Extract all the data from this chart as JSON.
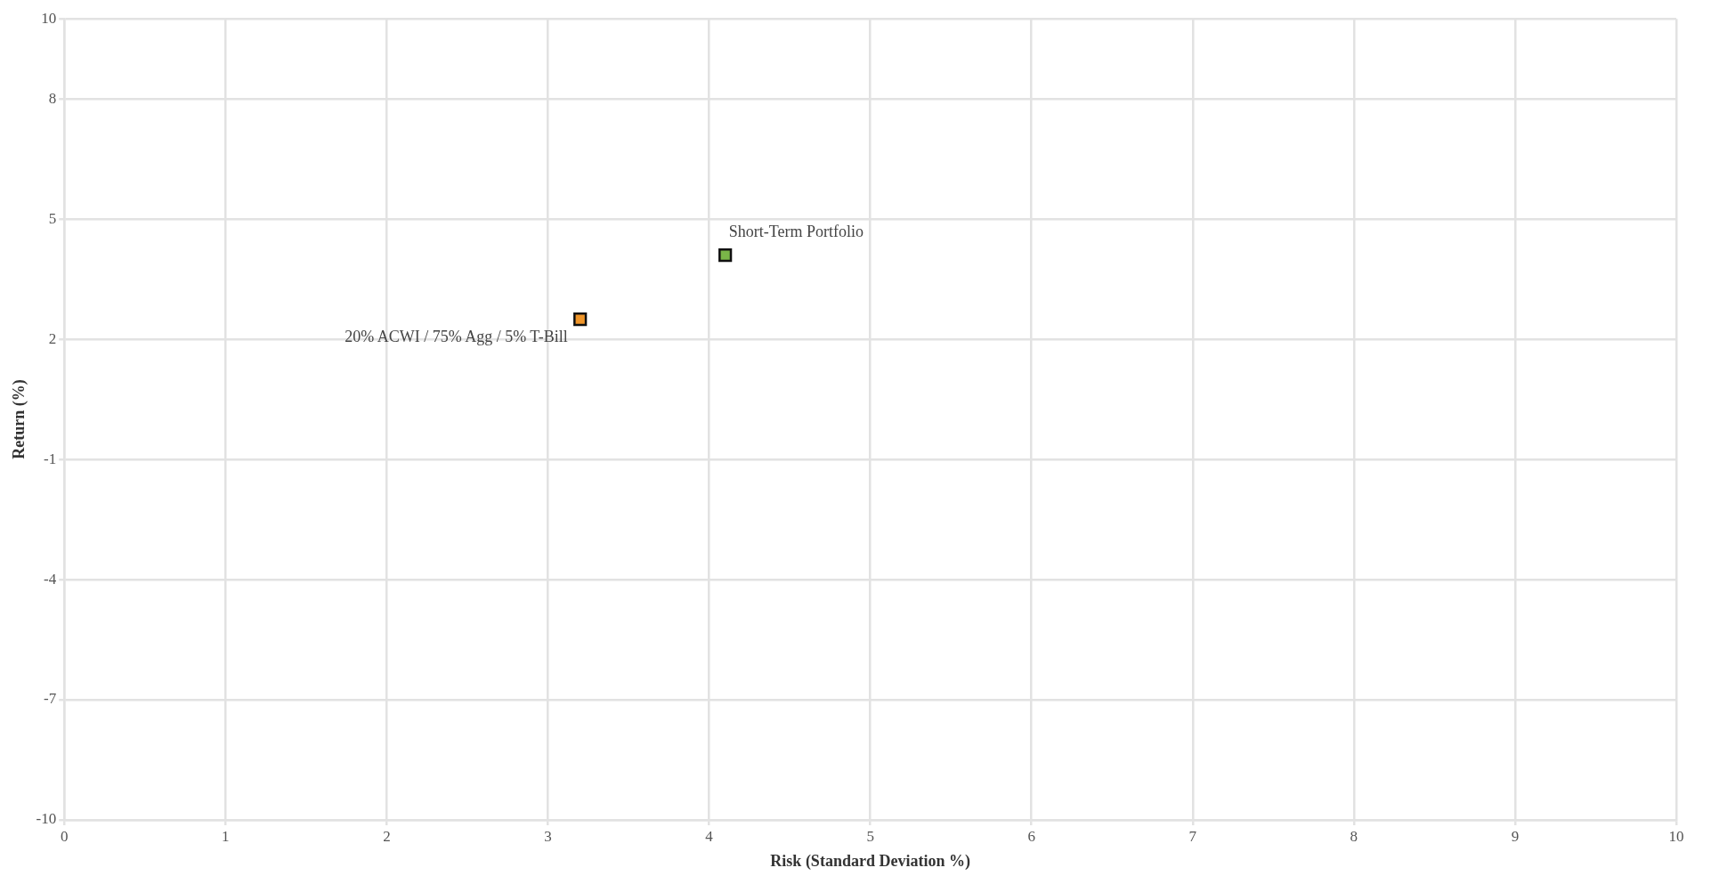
{
  "chart_data": {
    "type": "scatter",
    "xlabel": "Risk (Standard Deviation %)",
    "ylabel": "Return (%)",
    "series": [
      {
        "name": "20% ACWI / 75% Agg / 5% T-Bill",
        "color": "#f0962a",
        "x": [
          3.2
        ],
        "values": [
          2.5
        ]
      },
      {
        "name": "Short-Term Portfolio",
        "color": "#7ab648",
        "x": [
          4.1
        ],
        "values": [
          4.1
        ]
      }
    ],
    "xlim": [
      0,
      10
    ],
    "xticks": [
      0,
      1,
      2,
      3,
      4,
      5,
      6,
      7,
      8,
      9,
      10
    ],
    "ylim": [
      -10,
      10
    ],
    "yticks": [
      -10,
      -7,
      -4,
      -1,
      2,
      5,
      8,
      10
    ],
    "grid": true,
    "legend": false,
    "marker": "square"
  }
}
